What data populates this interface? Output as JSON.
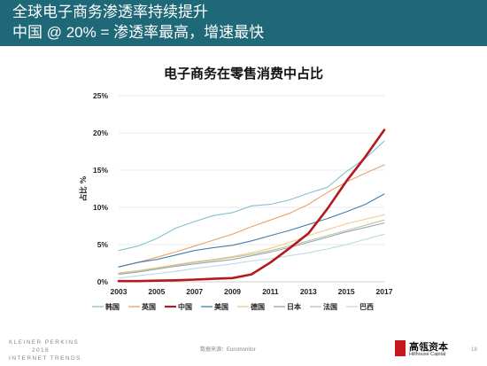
{
  "header": {
    "line1": "全球电子商务渗透率持续提升",
    "line2": "中国 @ 20% = 渗透率最高，增速最快"
  },
  "chart_data": {
    "type": "line",
    "title": "电子商务在零售消费中占比",
    "ylabel": "占比 %",
    "xlabel": "",
    "x": [
      2003,
      2004,
      2005,
      2006,
      2007,
      2008,
      2009,
      2010,
      2011,
      2012,
      2013,
      2014,
      2015,
      2016,
      2017
    ],
    "xticks": [
      "2003",
      "2005",
      "2007",
      "2009",
      "2011",
      "2013",
      "2015",
      "2017"
    ],
    "yticks": [
      "0%",
      "5%",
      "10%",
      "15%",
      "20%",
      "25%"
    ],
    "ylim": [
      0,
      25
    ],
    "grid": "horizontal",
    "legend_position": "bottom",
    "series": [
      {
        "name": "韩国",
        "color": "#7fc3cf",
        "width": 1.1,
        "values": [
          4.2,
          4.8,
          5.8,
          7.2,
          8.1,
          8.9,
          9.3,
          10.2,
          10.4,
          11.0,
          11.9,
          12.7,
          14.8,
          16.6,
          18.9
        ]
      },
      {
        "name": "英国",
        "color": "#e8a36b",
        "width": 1.1,
        "values": [
          2.0,
          2.6,
          3.3,
          4.0,
          4.8,
          5.6,
          6.4,
          7.4,
          8.3,
          9.2,
          10.4,
          12.0,
          13.4,
          14.6,
          15.7
        ]
      },
      {
        "name": "中国",
        "color": "#b3191e",
        "width": 2.6,
        "values": [
          0.1,
          0.1,
          0.15,
          0.2,
          0.3,
          0.4,
          0.5,
          1.0,
          2.6,
          4.5,
          6.5,
          9.8,
          13.5,
          16.8,
          20.4
        ]
      },
      {
        "name": "美国",
        "color": "#3e7fb1",
        "width": 1.1,
        "values": [
          2.0,
          2.6,
          3.0,
          3.6,
          4.2,
          4.6,
          4.9,
          5.5,
          6.2,
          6.9,
          7.7,
          8.5,
          9.4,
          10.4,
          11.8
        ]
      },
      {
        "name": "德国",
        "color": "#f5c98a",
        "width": 1.1,
        "values": [
          1.2,
          1.5,
          1.9,
          2.3,
          2.7,
          3.0,
          3.4,
          3.9,
          4.5,
          5.3,
          6.2,
          7.0,
          7.8,
          8.4,
          9.0
        ]
      },
      {
        "name": "日本",
        "color": "#9aa3ad",
        "width": 1.1,
        "values": [
          1.0,
          1.3,
          1.7,
          2.1,
          2.4,
          2.7,
          3.0,
          3.5,
          4.0,
          4.6,
          5.3,
          6.0,
          6.7,
          7.3,
          7.9
        ]
      },
      {
        "name": "法国",
        "color": "#b7c7a2",
        "width": 1.1,
        "values": [
          1.1,
          1.4,
          1.8,
          2.2,
          2.6,
          2.9,
          3.3,
          3.7,
          4.2,
          4.8,
          5.5,
          6.2,
          6.9,
          7.6,
          8.3
        ]
      },
      {
        "name": "巴西",
        "color": "#b9dbe9",
        "width": 1.1,
        "values": [
          0.5,
          0.8,
          1.1,
          1.4,
          1.8,
          2.1,
          2.4,
          2.8,
          3.1,
          3.5,
          3.9,
          4.4,
          5.0,
          5.7,
          6.4
        ]
      }
    ]
  },
  "footer": {
    "kp_line1": "KLEINER PERKINS",
    "kp_line2": "2018",
    "kp_line3": "INTERNET TRENDS",
    "source": "数据来源：Euromonitor",
    "brand_cn": "高瓴资本",
    "brand_en": "Hillhouse Capital",
    "page": "18"
  }
}
